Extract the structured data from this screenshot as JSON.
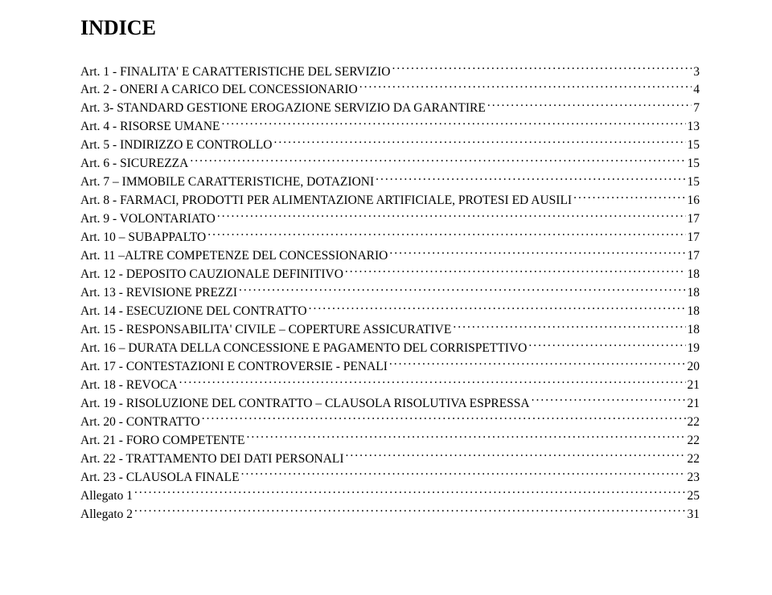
{
  "title": "INDICE",
  "toc": [
    {
      "label": "Art. 1 - FINALITA' E CARATTERISTICHE DEL SERVIZIO",
      "page": "3"
    },
    {
      "label": "Art. 2 - ONERI A CARICO DEL CONCESSIONARIO",
      "page": "4"
    },
    {
      "label": "Art. 3- STANDARD GESTIONE EROGAZIONE SERVIZIO DA GARANTIRE",
      "page": "7"
    },
    {
      "label": "Art. 4 - RISORSE UMANE",
      "page": "13"
    },
    {
      "label": "Art. 5 - INDIRIZZO E CONTROLLO",
      "page": "15"
    },
    {
      "label": "Art. 6 - SICUREZZA",
      "page": "15"
    },
    {
      "label": "Art. 7 – IMMOBILE CARATTERISTICHE, DOTAZIONI",
      "page": "15"
    },
    {
      "label": "Art. 8  - FARMACI, PRODOTTI PER ALIMENTAZIONE ARTIFICIALE, PROTESI ED AUSILI",
      "page": "16"
    },
    {
      "label": "Art. 9 - VOLONTARIATO",
      "page": "17"
    },
    {
      "label": "Art. 10 – SUBAPPALTO",
      "page": "17"
    },
    {
      "label": "Art. 11 –ALTRE COMPETENZE DEL CONCESSIONARIO",
      "page": "17"
    },
    {
      "label": "Art. 12 - DEPOSITO CAUZIONALE DEFINITIVO",
      "page": "18"
    },
    {
      "label": "Art. 13 - REVISIONE PREZZI",
      "page": "18"
    },
    {
      "label": "Art. 14 - ESECUZIONE DEL CONTRATTO",
      "page": "18"
    },
    {
      "label": "Art. 15 - RESPONSABILITA' CIVILE – COPERTURE ASSICURATIVE",
      "page": "18"
    },
    {
      "label": "Art. 16 – DURATA DELLA CONCESSIONE E PAGAMENTO DEL CORRISPETTIVO",
      "page": "19"
    },
    {
      "label": "Art. 17 - CONTESTAZIONI E CONTROVERSIE - PENALI",
      "page": "20"
    },
    {
      "label": "Art. 18 - REVOCA",
      "page": "21"
    },
    {
      "label": "Art. 19 - RISOLUZIONE DEL CONTRATTO – CLAUSOLA RISOLUTIVA ESPRESSA",
      "page": "21"
    },
    {
      "label": "Art. 20 - CONTRATTO",
      "page": "22"
    },
    {
      "label": "Art. 21 - FORO COMPETENTE",
      "page": "22"
    },
    {
      "label": "Art. 22 - TRATTAMENTO DEI DATI PERSONALI",
      "page": "22"
    },
    {
      "label": "Art. 23 - CLAUSOLA FINALE",
      "page": "23"
    },
    {
      "label": "Allegato 1",
      "page": "25"
    },
    {
      "label": "Allegato 2",
      "page": "31"
    }
  ]
}
